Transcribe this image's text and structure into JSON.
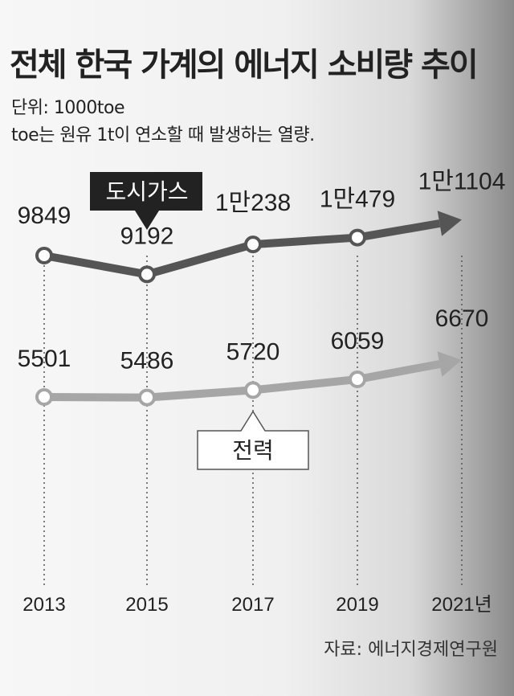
{
  "chart_data": {
    "type": "line",
    "title": "전체 한국 가계의 에너지 소비량 추이",
    "unit_label": "단위: 1000toe",
    "note": "toe는 원유 1t이 연소할 때 발생하는 열량.",
    "source": "자료: 에너지경제연구원",
    "x": [
      "2013",
      "2015",
      "2017",
      "2019",
      "2021년"
    ],
    "series": [
      {
        "name": "도시가스",
        "values": [
          9849,
          9192,
          10238,
          10479,
          11104
        ],
        "value_labels": [
          "9849",
          "9192",
          "1만238",
          "1만479",
          "1만1104"
        ],
        "color": "#555555"
      },
      {
        "name": "전력",
        "values": [
          5501,
          5486,
          5720,
          6059,
          6670
        ],
        "value_labels": [
          "5501",
          "5486",
          "5720",
          "6059",
          "6670"
        ],
        "color": "#a6a6a6"
      }
    ],
    "grid": "dotted vertical lines at each x",
    "legend": "callout labels"
  }
}
